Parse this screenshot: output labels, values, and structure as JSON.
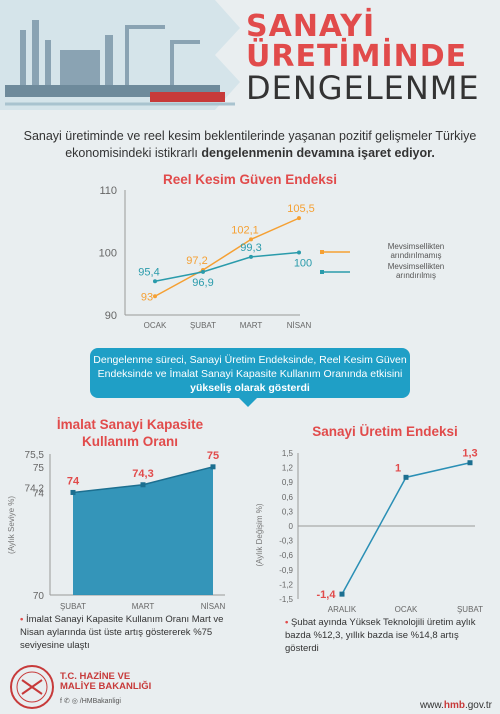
{
  "header": {
    "line1": "SANAYİ",
    "line2": "ÜRETİMİNDE",
    "line3": "DENGELENME"
  },
  "intro": {
    "text_part1": "Sanayi üretiminde ve reel kesim beklentilerinde yaşanan pozitif gelişmeler Türkiye ekonomisindeki istikrarlı ",
    "text_bold": "dengelenmenin devamına işaret ediyor.",
    "text_part2": ""
  },
  "banner": {
    "text": "Dengelenme süreci, Sanayi Üretim Endeksinde, Reel Kesim Güven Endeksinde ve İmalat Sanayi Kapasite Kullanım Oranında etkisini ",
    "bold": "yükseliş olarak gösterdi"
  },
  "notes": {
    "capacity": "İmalat Sanayi Kapasite Kullanım Oranı Mart ve Nisan aylarında üst üste artış göstererek %75 seviyesine ulaştı",
    "production": "Şubat ayında Yüksek Teknolojili üretim aylık bazda %12,3, yıllık bazda ise  %14,8 artış gösterdi"
  },
  "footer": {
    "org_line1": "T.C. HAZİNE VE",
    "org_line2": "MALİYE BAKANLIĞI",
    "social": "f ✆ ◎ /HMBakanligi",
    "site_prefix": "www.",
    "site_bold": "hmb",
    "site_suffix": ".gov.tr"
  },
  "colors": {
    "accent_red": "#e14b4b",
    "orange": "#f5a033",
    "teal": "#2a9bab",
    "banner_blue": "#1f9fc6",
    "capacity_blue": "#2a8fb5"
  },
  "chart_data": [
    {
      "type": "line",
      "title": "Reel Kesim Güven Endeksi",
      "categories": [
        "OCAK",
        "ŞUBAT",
        "MART",
        "NİSAN"
      ],
      "ylim": [
        90,
        110
      ],
      "yticks": [
        "90",
        "100",
        "110"
      ],
      "legend": "right",
      "series": [
        {
          "name": "Mevsimsellikten arındırılmamış",
          "values": [
            93,
            97.2,
            102.1,
            105.5
          ],
          "labels": [
            "93",
            "97,2",
            "102,1",
            "105,5"
          ],
          "color": "#f5a033"
        },
        {
          "name": "Mevsimsellikten arındırılmış",
          "values": [
            95.4,
            96.9,
            99.3,
            100
          ],
          "labels": [
            "95,4",
            "96,9",
            "99,3",
            "100"
          ],
          "color": "#2a9bab"
        }
      ]
    },
    {
      "type": "area",
      "title": "İmalat Sanayi Kapasite Kullanım Oranı",
      "ylabel": "(Aylık Seviye %)",
      "categories": [
        "ŞUBAT",
        "MART",
        "NİSAN"
      ],
      "values": [
        74,
        74.3,
        75
      ],
      "labels": [
        "74",
        "74,3",
        "75"
      ],
      "ylim": [
        70,
        75.5
      ],
      "ytick_values": [
        70,
        74,
        74.2,
        75,
        75.5
      ],
      "yticks": [
        "70",
        "74",
        "74,2",
        "75",
        "75,5"
      ]
    },
    {
      "type": "line",
      "title": "Sanayi Üretim Endeksi",
      "ylabel": "(Aylık Değişim %)",
      "categories": [
        "ARALIK",
        "OCAK",
        "ŞUBAT"
      ],
      "values": [
        -1.4,
        1,
        1.3
      ],
      "labels": [
        "-1,4",
        "1",
        "1,3"
      ],
      "ylim": [
        -1.5,
        1.5
      ],
      "yticks": [
        "-1,5",
        "-1,2",
        "-0,9",
        "-0,6",
        "-0,3",
        "0",
        "0,3",
        "0,6",
        "0,9",
        "1,2",
        "1,5"
      ]
    }
  ]
}
